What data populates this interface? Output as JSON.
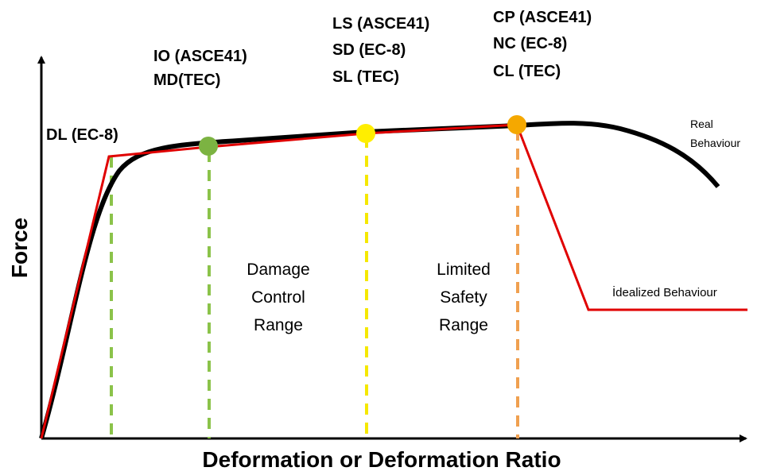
{
  "axes": {
    "y_label": "Force",
    "x_label": "Deformation or Deformation Ratio"
  },
  "levels": [
    {
      "lines": [
        "DL (EC-8)"
      ]
    },
    {
      "lines": [
        "IO (ASCE41)",
        "MD(TEC)"
      ]
    },
    {
      "lines": [
        "LS (ASCE41)",
        "SD (EC-8)",
        "SL (TEC)"
      ]
    },
    {
      "lines": [
        "CP (ASCE41)",
        "NC (EC-8)",
        "CL (TEC)"
      ]
    }
  ],
  "ranges": [
    {
      "lines": [
        "Damage",
        "Control",
        "Range"
      ]
    },
    {
      "lines": [
        "Limited",
        "Safety",
        "Range"
      ]
    }
  ],
  "curves": {
    "real": [
      "Real",
      "Behaviour"
    ],
    "idealized": "İdealized Behaviour"
  }
}
